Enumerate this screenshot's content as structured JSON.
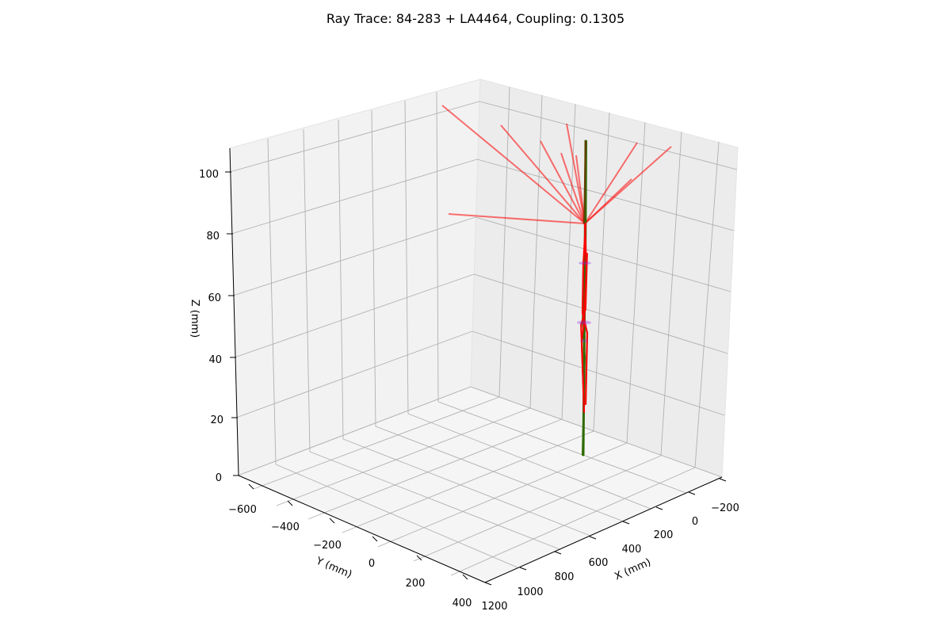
{
  "chart_data": {
    "type": "3d-line",
    "title": "Ray Trace: 84-283 + LA4464, Coupling: 0.1305",
    "xlabel": "X (mm)",
    "ylabel": "Y (mm)",
    "zlabel": "Z (mm)",
    "xlim": [
      -300,
      1200
    ],
    "ylim": [
      -700,
      400
    ],
    "zlim": [
      0,
      110
    ],
    "x_ticks": [
      "−200",
      "0",
      "200",
      "400",
      "600",
      "800",
      "1000",
      "1200"
    ],
    "y_ticks": [
      "−600",
      "−400",
      "−200",
      "0",
      "200",
      "400"
    ],
    "z_ticks": [
      "0",
      "20",
      "40",
      "60",
      "80",
      "100"
    ],
    "grid": true,
    "colors": {
      "escaped_rays": "#ff0000",
      "coupled_rays": "#2d6a00",
      "lens_surfaces": "#8a2be2"
    }
  }
}
